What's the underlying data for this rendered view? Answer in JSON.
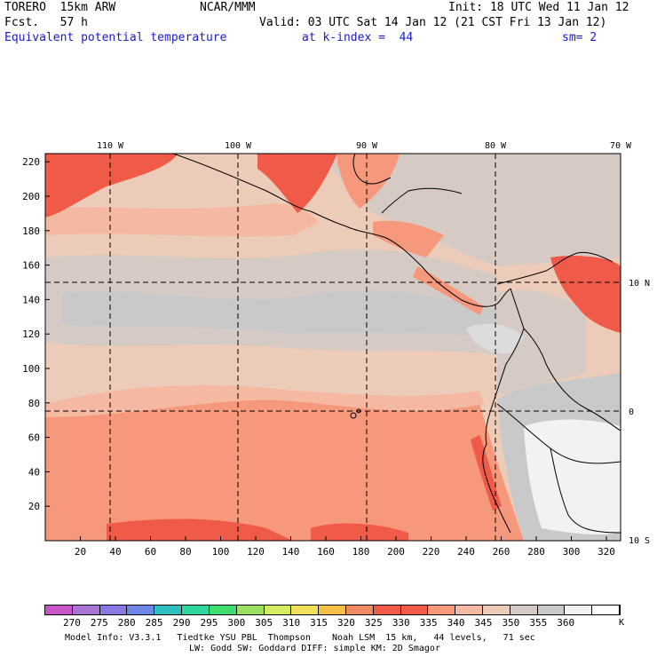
{
  "header": {
    "model": "TORERO  15km ARW",
    "org": "NCAR/MMM",
    "init": "Init: 18 UTC Wed 11 Jan 12",
    "fcst": "Fcst.   57 h",
    "valid": "Valid: 03 UTC Sat 14 Jan 12 (21 CST Fri 13 Jan 12)",
    "field": "Equivalent potential temperature",
    "level": "at k-index =  44",
    "smooth": "sm= 2"
  },
  "map": {
    "lon_labels": [
      "110 W",
      "100 W",
      "90 W",
      "80 W",
      "70 W"
    ],
    "lat_labels": [
      "10 N",
      "0",
      "10 S"
    ],
    "x_ticks": [
      "20",
      "40",
      "60",
      "80",
      "100",
      "120",
      "140",
      "160",
      "180",
      "200",
      "220",
      "240",
      "260",
      "280",
      "300",
      "320"
    ],
    "y_ticks": [
      "220",
      "200",
      "180",
      "160",
      "140",
      "120",
      "100",
      "80",
      "60",
      "40",
      "20"
    ],
    "colors": {
      "c325": "#f08a60",
      "c330": "#f05a48",
      "c335": "#f6987c",
      "c340": "#f4b9a0",
      "c345": "#ecccb8",
      "c350": "#d6cbc4",
      "c355": "#c9c9c9",
      "c360": "#dcdcdc",
      "c365": "#f2f2f2"
    }
  },
  "colorbar": {
    "colors": [
      "#c856c8",
      "#a874d6",
      "#8878e0",
      "#6e86e6",
      "#2ec0c0",
      "#30d6a0",
      "#40dc70",
      "#9ce060",
      "#d6ec60",
      "#f0e05a",
      "#f4c048",
      "#f08a60",
      "#f05a48",
      "#f05a48",
      "#f6987c",
      "#f4b9a0",
      "#ecccb8",
      "#d6cbc4",
      "#c9c9c9",
      "#f2f2f2",
      "#ffffff"
    ],
    "labels": [
      "270",
      "275",
      "280",
      "285",
      "290",
      "295",
      "300",
      "305",
      "310",
      "315",
      "320",
      "325",
      "330",
      "335",
      "340",
      "345",
      "350",
      "355",
      "360"
    ],
    "unit": "K"
  },
  "footer": {
    "line1": "Model Info: V3.3.1   Tiedtke YSU PBL  Thompson    Noah LSM  15 km,   44 levels,   71 sec",
    "line2": "LW: Godd SW: Goddard DIFF: simple KM: 2D Smagor"
  }
}
